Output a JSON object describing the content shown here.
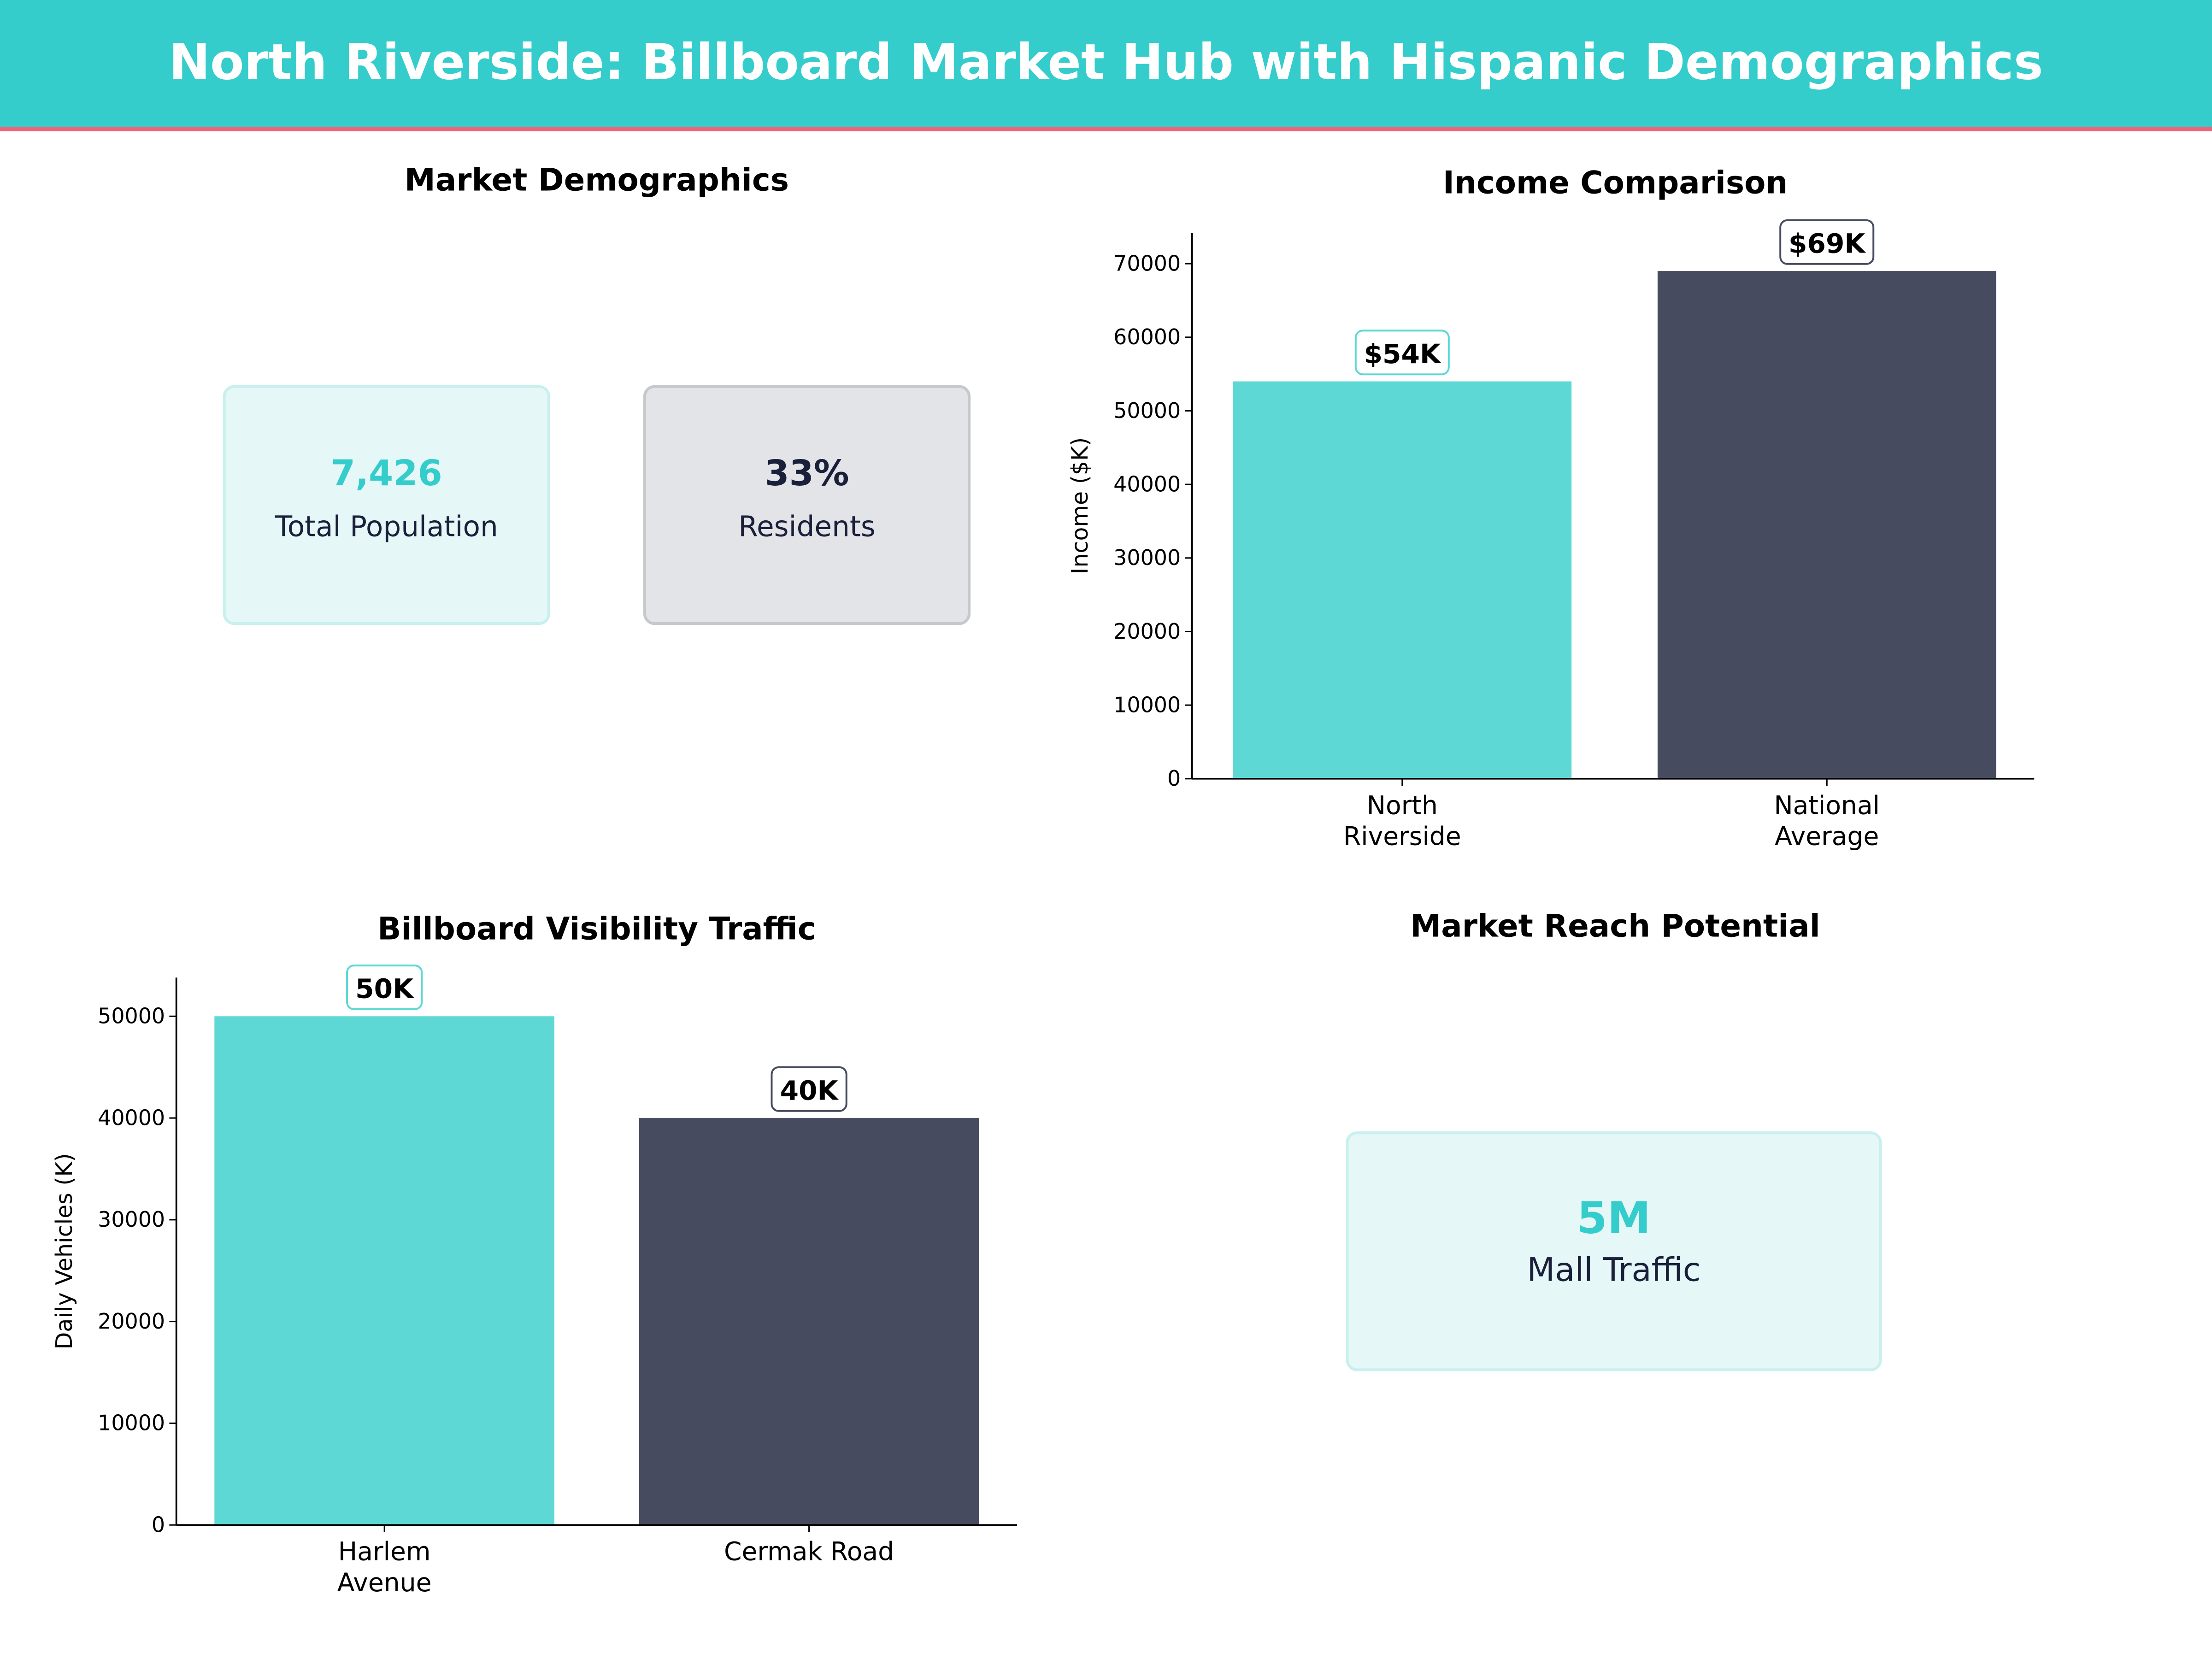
{
  "header": {
    "title": "North Riverside: Billboard Market Hub with Hispanic Demographics"
  },
  "colors": {
    "header": "#35cccc",
    "accent_line": "#f06277",
    "teal": "#5dd8d4",
    "dark": "#464b60"
  },
  "demographics": {
    "title": "Market Demographics",
    "cards": [
      {
        "value": "7,426",
        "label": "Total Population"
      },
      {
        "value": "33%",
        "label": "Residents"
      }
    ]
  },
  "reach": {
    "title": "Market Reach Potential",
    "card": {
      "value": "5M",
      "label": "Mall Traffic"
    }
  },
  "chart_data": [
    {
      "type": "bar",
      "title": "Income Comparison",
      "xlabel": "",
      "ylabel": "Income ($K)",
      "categories": [
        "North\nRiverside",
        "National\nAverage"
      ],
      "values": [
        54000,
        69000
      ],
      "data_labels": [
        "$54K",
        "$69K"
      ],
      "colors": [
        "#5dd8d4",
        "#464b60"
      ],
      "ylim": [
        0,
        74200
      ],
      "yticks": [
        0,
        10000,
        20000,
        30000,
        40000,
        50000,
        60000,
        70000
      ],
      "grid": false
    },
    {
      "type": "bar",
      "title": "Billboard Visibility Traffic",
      "xlabel": "",
      "ylabel": "Daily Vehicles (K)",
      "categories": [
        "Harlem\nAvenue",
        "Cermak Road"
      ],
      "values": [
        50000,
        40000
      ],
      "data_labels": [
        "50K",
        "40K"
      ],
      "colors": [
        "#5dd8d4",
        "#464b60"
      ],
      "ylim": [
        0,
        53800
      ],
      "yticks": [
        0,
        10000,
        20000,
        30000,
        40000,
        50000
      ],
      "grid": false
    }
  ]
}
